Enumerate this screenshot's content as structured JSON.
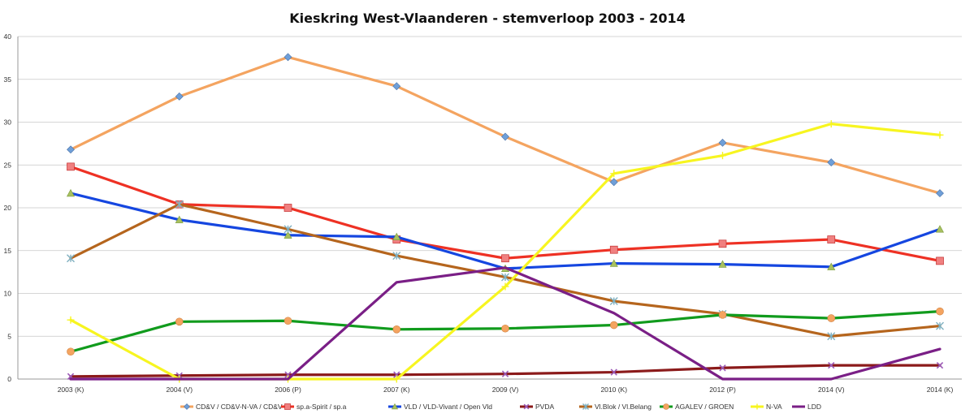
{
  "chart_data": {
    "type": "line",
    "title": "Kieskring West-Vlaanderen - stemverloop 2003 - 2014",
    "xlabel": "",
    "ylabel": "",
    "ylim": [
      0,
      40
    ],
    "yticks": [
      0,
      5,
      10,
      15,
      20,
      25,
      30,
      35,
      40
    ],
    "grid": true,
    "legend_position": "bottom",
    "categories": [
      "2003 (K)",
      "2004 (V)",
      "2006 (P)",
      "2007 (K)",
      "2009 (V)",
      "2010 (K)",
      "2012 (P)",
      "2014 (V)",
      "2014 (K)"
    ],
    "series": [
      {
        "name": "CD&V / CD&V-N-VA / CD&V",
        "color": "#f4a460",
        "marker": "diamond",
        "marker_color": "#6f9fd8",
        "values": [
          26.8,
          33.0,
          37.6,
          34.2,
          28.3,
          23.0,
          27.6,
          25.3,
          21.7
        ]
      },
      {
        "name": "sp.a-Spirit /  sp.a",
        "color": "#ee3124",
        "marker": "square",
        "marker_color": "#f08080",
        "values": [
          24.8,
          20.4,
          20.0,
          16.3,
          14.1,
          15.1,
          15.8,
          16.3,
          13.8
        ]
      },
      {
        "name": "VLD / VLD-Vivant / Open Vld",
        "color": "#1546e0",
        "marker": "triangle",
        "marker_color": "#a8c060",
        "values": [
          21.7,
          18.6,
          16.8,
          16.6,
          12.9,
          13.5,
          13.4,
          13.1,
          17.5
        ]
      },
      {
        "name": "PVDA",
        "color": "#8b1a1a",
        "marker": "x",
        "marker_color": "#9b59b6",
        "values": [
          0.3,
          0.4,
          0.5,
          0.5,
          0.6,
          0.8,
          1.3,
          1.6,
          1.6
        ]
      },
      {
        "name": "Vl.Blok / Vl.Belang",
        "color": "#b5651d",
        "marker": "star",
        "marker_color": "#7fb0c0",
        "values": [
          14.1,
          20.4,
          17.5,
          14.4,
          11.9,
          9.1,
          7.6,
          5.0,
          6.2
        ]
      },
      {
        "name": "AGALEV / GROEN",
        "color": "#119b1d",
        "marker": "circle",
        "marker_color": "#f4a460",
        "values": [
          3.2,
          6.7,
          6.8,
          5.8,
          5.9,
          6.3,
          7.5,
          7.1,
          7.9
        ]
      },
      {
        "name": "N-VA",
        "color": "#f7f520",
        "marker": "plus",
        "marker_color": "#f7f520",
        "values": [
          6.9,
          0.0,
          0.0,
          0.0,
          10.8,
          24.0,
          26.1,
          29.8,
          28.5
        ]
      },
      {
        "name": "LDD",
        "color": "#7a1f86",
        "marker": "none",
        "marker_color": "#7a1f86",
        "values": [
          0.0,
          0.0,
          0.0,
          11.3,
          13.0,
          7.7,
          0.0,
          0.0,
          3.5
        ]
      }
    ]
  }
}
